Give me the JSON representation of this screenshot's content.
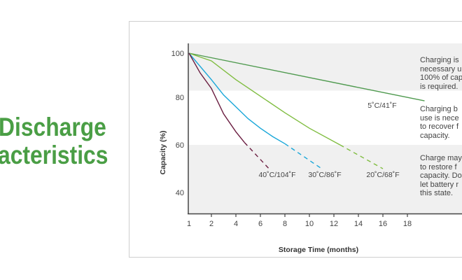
{
  "heading": {
    "line1": "Discharge",
    "line2": "acteristics",
    "color": "#4a9e45"
  },
  "chart_data": {
    "type": "line",
    "xlabel": "Storage Time (months)",
    "ylabel": "Capacity (%)",
    "x_ticks": [
      1,
      2,
      4,
      6,
      8,
      10,
      12,
      14,
      16,
      18
    ],
    "y_ticks": [
      100,
      80,
      60,
      40
    ],
    "grid": false,
    "bands": [
      {
        "from": 100,
        "to": 83,
        "color": "#f0f0f0"
      },
      {
        "from": 83,
        "to": 60,
        "color": "#ffffff"
      },
      {
        "from": 60,
        "to": 35,
        "color": "#f0f0f0"
      }
    ],
    "series": [
      {
        "name": "5˚C/41˚F",
        "color": "#4f9a4f",
        "solid": [
          [
            1,
            100
          ],
          [
            19.4,
            78.5
          ]
        ],
        "dashed": []
      },
      {
        "name": "20˚C/68˚F",
        "color": "#80bd41",
        "solid": [
          [
            1,
            100
          ],
          [
            2,
            96.5
          ],
          [
            4,
            88
          ],
          [
            6,
            80.5
          ],
          [
            8,
            73.5
          ],
          [
            10,
            67
          ],
          [
            12.5,
            60
          ]
        ],
        "dashed": [
          [
            12.5,
            60
          ],
          [
            16,
            50
          ]
        ]
      },
      {
        "name": "30˚C/86˚F",
        "color": "#1aa7d9",
        "solid": [
          [
            1,
            100
          ],
          [
            2,
            88
          ],
          [
            3,
            81
          ],
          [
            4,
            76
          ],
          [
            5,
            71
          ],
          [
            6,
            67
          ],
          [
            7,
            63.5
          ],
          [
            8,
            60.5
          ]
        ],
        "dashed": [
          [
            8,
            60.5
          ],
          [
            11,
            50
          ]
        ]
      },
      {
        "name": "40˚C/104˚F",
        "color": "#6a1d40",
        "solid": [
          [
            1,
            100
          ],
          [
            1.5,
            91
          ],
          [
            2,
            84
          ],
          [
            3,
            73
          ],
          [
            4,
            65.5
          ],
          [
            4.7,
            61
          ]
        ],
        "dashed": [
          [
            4.7,
            61
          ],
          [
            6.7,
            50
          ]
        ]
      }
    ]
  },
  "notes": [
    [
      "Charging is",
      "necessary u",
      "100% of cap",
      "is required."
    ],
    [
      "Charging b",
      "use is nece",
      "to recover f",
      "capacity."
    ],
    [
      "Charge may",
      "to restore f",
      "capacity. Do",
      "let battery r",
      "this state."
    ]
  ]
}
